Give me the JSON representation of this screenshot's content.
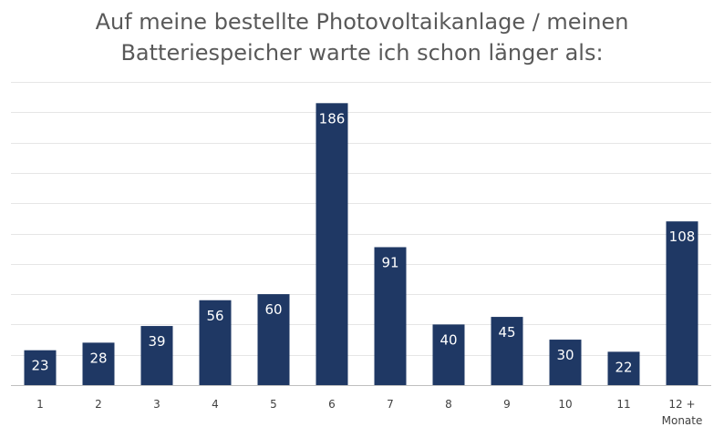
{
  "chart_data": {
    "type": "bar",
    "title_lines": [
      "Auf meine bestellte Photovoltaikanlage / meinen",
      "Batteriespeicher warte ich schon länger als:"
    ],
    "categories": [
      [
        "1"
      ],
      [
        "2"
      ],
      [
        "3"
      ],
      [
        "4"
      ],
      [
        "5"
      ],
      [
        "6"
      ],
      [
        "7"
      ],
      [
        "8"
      ],
      [
        "9"
      ],
      [
        "10"
      ],
      [
        "11"
      ],
      [
        "12 +",
        "Monate"
      ]
    ],
    "values": [
      23,
      28,
      39,
      56,
      60,
      186,
      91,
      40,
      45,
      30,
      22,
      108
    ],
    "xlabel": "",
    "ylabel": "",
    "ylim": [
      0,
      200
    ],
    "grid": true,
    "y_axis_tick_labels_visible": false,
    "bar_color": "#1f3864",
    "grid_color": "#e6e6e6",
    "axis_color": "#bfbfbf",
    "title_color": "#595959",
    "tick_label_color": "#404040",
    "data_label_color": "#ffffff"
  }
}
